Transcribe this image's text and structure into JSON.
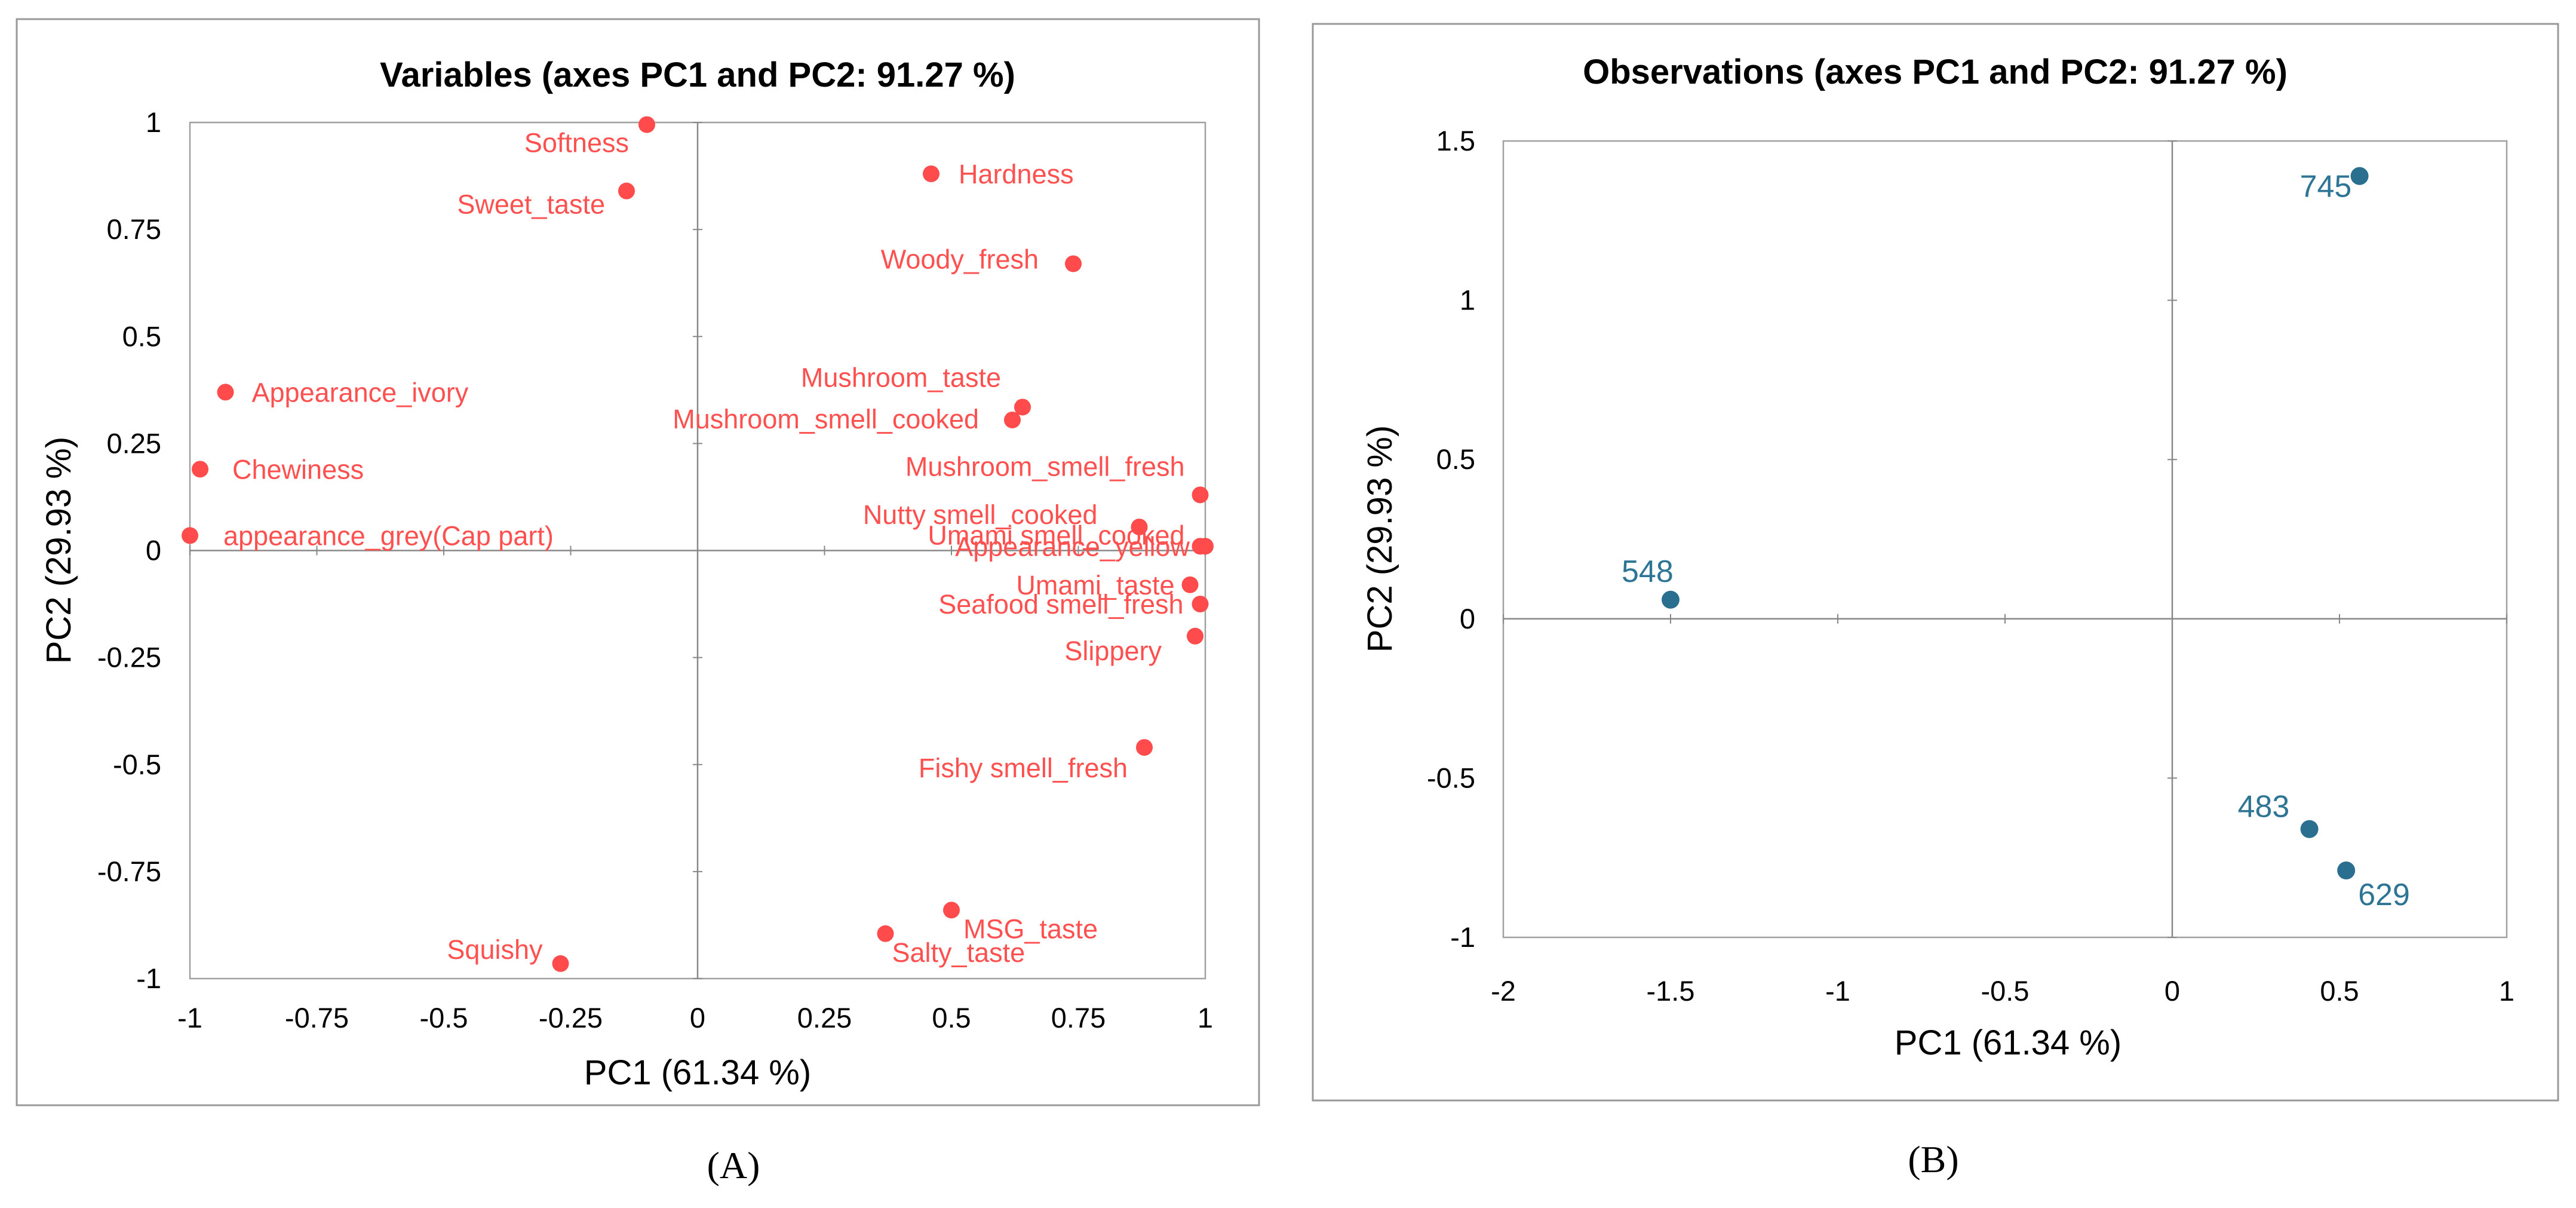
{
  "panel_labels": [
    "(A)",
    "(B)"
  ],
  "colors": {
    "variables": "#FF4B4B",
    "observations": "#2A6F8F",
    "axis": "#888888",
    "frame": "#999999"
  },
  "chart_data": [
    {
      "type": "scatter",
      "title": "Variables (axes PC1 and PC2: 91.27 %)",
      "xlabel": "PC1 (61.34 %)",
      "ylabel": "PC2 (29.93 %)",
      "xlim": [
        -1,
        1
      ],
      "ylim": [
        -1,
        1
      ],
      "xticks": [
        -1,
        -0.75,
        -0.5,
        -0.25,
        0,
        0.25,
        0.5,
        0.75,
        1
      ],
      "xtick_labels": [
        "-1",
        "-0.75",
        "-0.5",
        "-0.25",
        "0",
        "0.25",
        "0.5",
        "0.75",
        "1"
      ],
      "yticks": [
        1,
        0.75,
        0.5,
        0.25,
        0,
        -0.25,
        -0.5,
        -0.75,
        -1
      ],
      "ytick_labels": [
        "1",
        "0.75",
        "0.5",
        "0.25",
        "0",
        "-0.25",
        "-0.5",
        "-0.75",
        "-1"
      ],
      "points": [
        {
          "label": "Softness",
          "x": -0.1,
          "y": 0.995
        },
        {
          "label": "Sweet_taste",
          "x": -0.14,
          "y": 0.84
        },
        {
          "label": "Hardness",
          "x": 0.46,
          "y": 0.88
        },
        {
          "label": "Woody_fresh",
          "x": 0.74,
          "y": 0.67
        },
        {
          "label": "Appearance_ivory",
          "x": -0.93,
          "y": 0.37
        },
        {
          "label": "Chewiness",
          "x": -0.98,
          "y": 0.19
        },
        {
          "label": "appearance_grey(Cap part)",
          "x": -1.0,
          "y": 0.035
        },
        {
          "label": "Mushroom_taste",
          "x": 0.64,
          "y": 0.335
        },
        {
          "label": "Mushroom_smell_cooked",
          "x": 0.62,
          "y": 0.305
        },
        {
          "label": "Mushroom_smell_fresh",
          "x": 0.99,
          "y": 0.13
        },
        {
          "label": "Umami smell_cooked",
          "x": 0.99,
          "y": 0.01
        },
        {
          "label": "Nutty smell_cooked",
          "x": 0.87,
          "y": 0.055
        },
        {
          "label": "Appearance_yellow",
          "x": 1.0,
          "y": 0.01
        },
        {
          "label": "Umami_taste",
          "x": 0.97,
          "y": -0.08
        },
        {
          "label": "Seafood smell_fresh",
          "x": 0.99,
          "y": -0.125
        },
        {
          "label": "Slippery",
          "x": 0.98,
          "y": -0.2
        },
        {
          "label": "Fishy smell_fresh",
          "x": 0.88,
          "y": -0.46
        },
        {
          "label": "MSG_taste",
          "x": 0.5,
          "y": -0.84
        },
        {
          "label": "Salty_taste",
          "x": 0.37,
          "y": -0.895
        },
        {
          "label": "Squishy",
          "x": -0.27,
          "y": -0.965
        }
      ]
    },
    {
      "type": "scatter",
      "title": "Observations (axes PC1 and PC2: 91.27 %)",
      "xlabel": "PC1 (61.34 %)",
      "ylabel": "PC2 (29.93 %)",
      "xlim": [
        -2,
        1
      ],
      "ylim": [
        -1,
        1.5
      ],
      "xticks": [
        -2,
        -1.5,
        -1,
        -0.5,
        0,
        0.5,
        1
      ],
      "xtick_labels": [
        "-2",
        "-1.5",
        "-1",
        "-0.5",
        "0",
        "0.5",
        "1"
      ],
      "yticks": [
        1.5,
        1,
        0.5,
        0,
        -0.5,
        -1
      ],
      "ytick_labels": [
        "1.5",
        "1",
        "0.5",
        "0",
        "-0.5",
        "-1"
      ],
      "points": [
        {
          "label": "745",
          "x": 0.56,
          "y": 1.39
        },
        {
          "label": "548",
          "x": -1.5,
          "y": 0.06
        },
        {
          "label": "483",
          "x": 0.41,
          "y": -0.66
        },
        {
          "label": "629",
          "x": 0.52,
          "y": -0.79
        }
      ]
    }
  ]
}
